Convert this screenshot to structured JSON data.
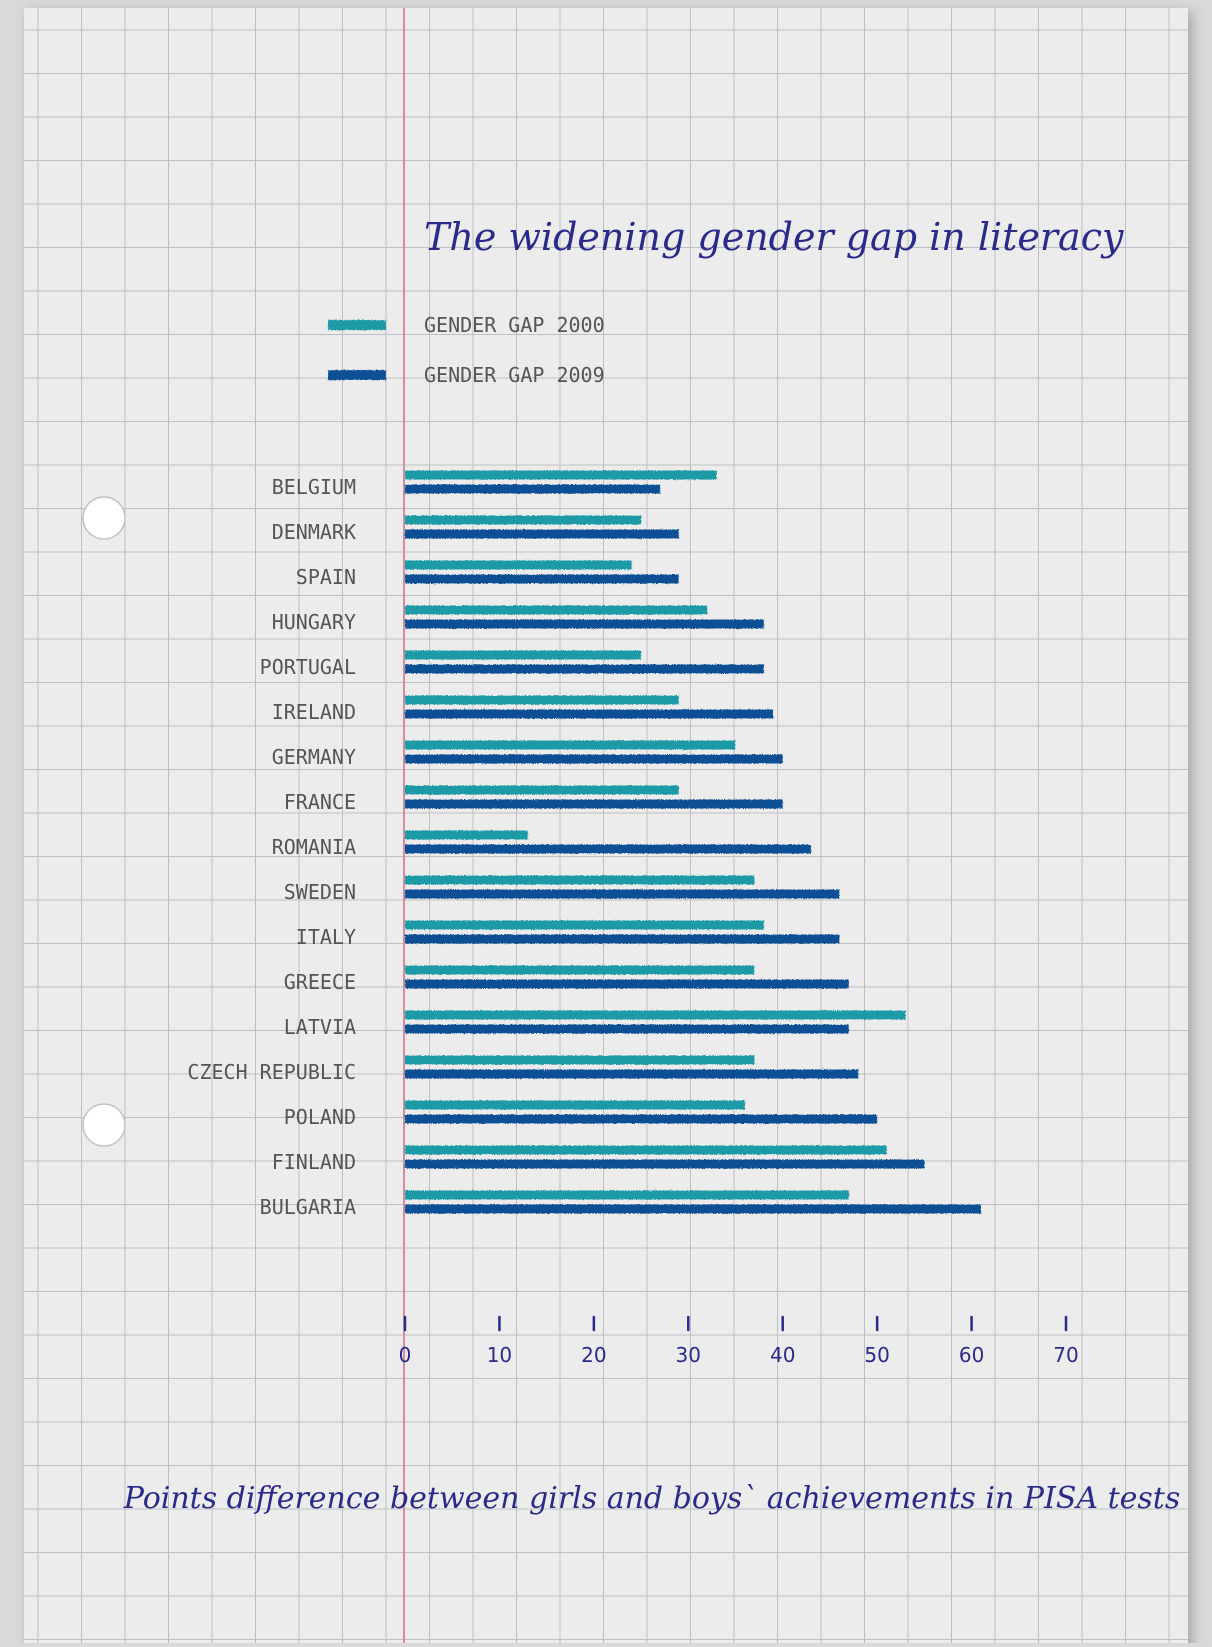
{
  "colors": {
    "series_2000": "#1a9aa6",
    "series_2009": "#0d4f94",
    "margin_line": "#d98a9e",
    "grid_line": "#b6b8bc",
    "paper": "#ececec",
    "label_text": "#555555",
    "handwriting": "#2a2a8a"
  },
  "chart_data": {
    "type": "bar",
    "orientation": "horizontal",
    "title": "The widening gender gap in literacy",
    "xlabel": "Points difference between girls and boys` achievements in PISA tests",
    "ylabel": "",
    "xlim": [
      0,
      70
    ],
    "xticks": [
      0,
      10,
      20,
      30,
      40,
      50,
      60,
      70
    ],
    "grid": true,
    "legend_position": "top-left",
    "categories": [
      "BELGIUM",
      "DENMARK",
      "SPAIN",
      "HUNGARY",
      "PORTUGAL",
      "IRELAND",
      "GERMANY",
      "FRANCE",
      "ROMANIA",
      "SWEDEN",
      "ITALY",
      "GREECE",
      "LATVIA",
      "CZECH REPUBLIC",
      "POLAND",
      "FINLAND",
      "BULGARIA"
    ],
    "series": [
      {
        "name": "GENDER GAP 2000",
        "values": [
          33,
          25,
          24,
          32,
          25,
          29,
          35,
          29,
          13,
          37,
          38,
          37,
          53,
          37,
          36,
          51,
          47
        ]
      },
      {
        "name": "GENDER GAP 2009",
        "values": [
          27,
          29,
          29,
          38,
          38,
          39,
          40,
          40,
          43,
          46,
          46,
          47,
          47,
          48,
          50,
          55,
          61
        ]
      }
    ]
  }
}
